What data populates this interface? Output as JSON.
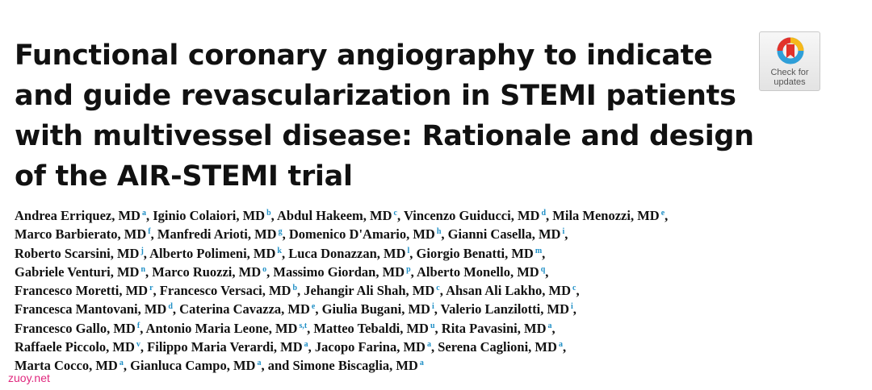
{
  "title_lines": [
    "Functional coronary angiography to indicate",
    "and guide revascularization in STEMI patients",
    "with multivessel disease: Rationale and design",
    "of the AIR-STEMI trial"
  ],
  "badge": {
    "line1": "Check for",
    "line2": "updates",
    "icon": "check-for-updates-icon"
  },
  "authors": [
    [
      {
        "name": "Andrea Erriquez, MD",
        "sup": "a",
        "sep": ", "
      },
      {
        "name": "Iginio Colaiori, MD",
        "sup": "b",
        "sep": ", "
      },
      {
        "name": "Abdul Hakeem, MD",
        "sup": "c",
        "sep": ", "
      },
      {
        "name": "Vincenzo Guiducci, MD",
        "sup": "d",
        "sep": ", "
      },
      {
        "name": "Mila Menozzi, MD",
        "sup": "e",
        "sep": ","
      }
    ],
    [
      {
        "name": "Marco Barbierato, MD",
        "sup": "f",
        "sep": ", "
      },
      {
        "name": "Manfredi Arioti, MD",
        "sup": "g",
        "sep": ", "
      },
      {
        "name": "Domenico D'Amario, MD",
        "sup": "h",
        "sep": ", "
      },
      {
        "name": "Gianni Casella, MD",
        "sup": "i",
        "sep": ","
      }
    ],
    [
      {
        "name": "Roberto Scarsini, MD",
        "sup": "j",
        "sep": ", "
      },
      {
        "name": "Alberto Polimeni, MD",
        "sup": "k",
        "sep": ", "
      },
      {
        "name": "Luca Donazzan, MD",
        "sup": "l",
        "sep": ", "
      },
      {
        "name": "Giorgio Benatti, MD",
        "sup": "m",
        "sep": ","
      }
    ],
    [
      {
        "name": "Gabriele Venturi, MD",
        "sup": "n",
        "sep": ", "
      },
      {
        "name": "Marco Ruozzi, MD",
        "sup": "o",
        "sep": ", "
      },
      {
        "name": "Massimo Giordan, MD",
        "sup": "p",
        "sep": ", "
      },
      {
        "name": "Alberto Monello, MD",
        "sup": "q",
        "sep": ","
      }
    ],
    [
      {
        "name": "Francesco Moretti, MD",
        "sup": "r",
        "sep": ", "
      },
      {
        "name": "Francesco Versaci, MD",
        "sup": "b",
        "sep": ", "
      },
      {
        "name": "Jehangir Ali Shah, MD",
        "sup": "c",
        "sep": ", "
      },
      {
        "name": "Ahsan Ali Lakho, MD",
        "sup": "c",
        "sep": ","
      }
    ],
    [
      {
        "name": "Francesca Mantovani, MD",
        "sup": "d",
        "sep": ", "
      },
      {
        "name": "Caterina Cavazza, MD",
        "sup": "e",
        "sep": ", "
      },
      {
        "name": "Giulia Bugani, MD",
        "sup": "i",
        "sep": ", "
      },
      {
        "name": "Valerio Lanzilotti, MD",
        "sup": "i",
        "sep": ","
      }
    ],
    [
      {
        "name": "Francesco Gallo, MD",
        "sup": "f",
        "sep": ", "
      },
      {
        "name": "Antonio Maria Leone, MD",
        "sup": "s,t",
        "sep": ", "
      },
      {
        "name": "Matteo Tebaldi, MD",
        "sup": "u",
        "sep": ", "
      },
      {
        "name": "Rita Pavasini, MD",
        "sup": "a",
        "sep": ","
      }
    ],
    [
      {
        "name": "Raffaele Piccolo, MD",
        "sup": "v",
        "sep": ", "
      },
      {
        "name": "Filippo Maria Verardi, MD",
        "sup": "a",
        "sep": ", "
      },
      {
        "name": "Jacopo Farina, MD",
        "sup": "a",
        "sep": ", "
      },
      {
        "name": "Serena Caglioni, MD",
        "sup": "a",
        "sep": ","
      }
    ],
    [
      {
        "name": "Marta Cocco, MD",
        "sup": "a",
        "sep": ", "
      },
      {
        "name": "Gianluca Campo, MD",
        "sup": "a",
        "sep": ", and "
      },
      {
        "name": "Simone Biscaglia, MD",
        "sup": "a",
        "sep": ""
      }
    ]
  ],
  "watermark": "zuoy.net",
  "colors": {
    "superscript": "#1f8fc6",
    "watermark": "#e0287e",
    "badge_ring_red": "#e2322a",
    "badge_ring_yellow": "#f6b81a",
    "badge_ring_blue": "#2f9fd8"
  }
}
